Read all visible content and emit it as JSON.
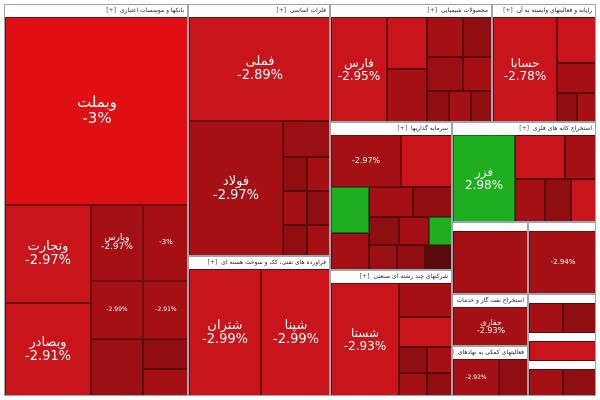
{
  "colors": {
    "red_strong": "#e00f14",
    "red_mid": "#c8141a",
    "red_dark": "#a51014",
    "red_deep": "#8f0e12",
    "green": "#1fae1f",
    "border": "#9aa6b0"
  },
  "expand_label": "[+]",
  "sectors": [
    {
      "id": "banks",
      "title": "بانکها و موسسات اعتباری",
      "tiles": [
        {
          "sym": "وبملت",
          "chg": "-3%",
          "tone": "red_strong"
        },
        {
          "sym": "وتجارت",
          "chg": "-2.97%",
          "tone": "red_mid"
        },
        {
          "sym": "وپارس",
          "chg": "-2.97%",
          "tone": "red_dark"
        },
        {
          "sym": "وبصادر",
          "chg": "-2.91%",
          "tone": "red_mid"
        },
        {
          "sym": "",
          "chg": "-2.99%",
          "tone": "red_dark"
        },
        {
          "sym": "",
          "chg": "-2.91%",
          "tone": "red_dark"
        },
        {
          "sym": "",
          "chg": "-3%",
          "tone": "red_dark"
        }
      ]
    },
    {
      "id": "metals",
      "title": "فلزات اساسی",
      "tiles": [
        {
          "sym": "فملی",
          "chg": "-2.89%",
          "tone": "red_mid"
        },
        {
          "sym": "فولاد",
          "chg": "-2.97%",
          "tone": "red_dark"
        }
      ]
    },
    {
      "id": "chemicals",
      "title": "محصولات شیمیایی",
      "tiles": [
        {
          "sym": "فارس",
          "chg": "-2.95%",
          "tone": "red_mid"
        }
      ]
    },
    {
      "id": "computers",
      "title": "رایانه و فعالیتهای وابسته به آن",
      "tiles": [
        {
          "sym": "حسابا",
          "chg": "-2.78%",
          "tone": "red_mid"
        },
        {
          "sym": "",
          "chg": "-2.94%",
          "tone": "red_dark"
        }
      ]
    },
    {
      "id": "investments",
      "title": "سرمایه گذاریها",
      "tiles": [
        {
          "sym": "",
          "chg": "-2.97%",
          "tone": "red_dark"
        }
      ]
    },
    {
      "id": "metal_ore",
      "title": "استخراج کانه های فلزی",
      "tiles": [
        {
          "sym": "فزر",
          "chg": "2.98%",
          "tone": "green"
        }
      ]
    },
    {
      "id": "oil_products",
      "title": "فراورده های نفتی، کک و سوخت هسته ای",
      "tiles": [
        {
          "sym": "شتران",
          "chg": "-2.99%",
          "tone": "red_mid"
        },
        {
          "sym": "شپنا",
          "chg": "-2.99%",
          "tone": "red_mid"
        }
      ]
    },
    {
      "id": "multi_industry",
      "title": "شرکتهای چند رشته ای صنعتی",
      "tiles": [
        {
          "sym": "شستا",
          "chg": "-2.93%",
          "tone": "red_mid"
        }
      ]
    },
    {
      "id": "oil_extraction",
      "title": "استخراج نفت گاز و خدمات",
      "tiles": [
        {
          "sym": "حفاری",
          "chg": "-2.93%",
          "tone": "red_dark"
        }
      ]
    },
    {
      "id": "aux_services",
      "title": "فعالیتهای کمکی به نهادهای",
      "tiles": [
        {
          "sym": "",
          "chg": "-2.92%",
          "tone": "red_dark"
        }
      ]
    }
  ]
}
